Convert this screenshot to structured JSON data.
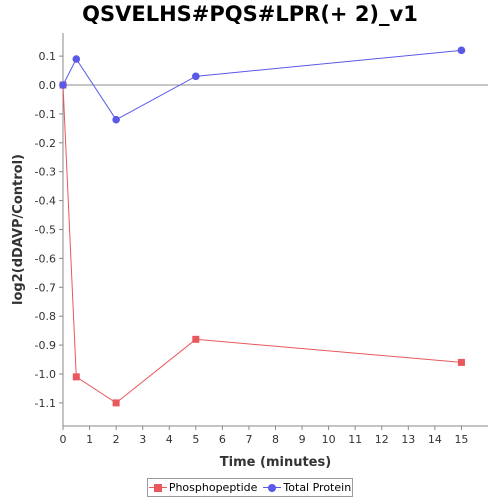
{
  "chart_data": {
    "type": "line",
    "title": "QSVELHS#PQS#LPR(+ 2)_v1",
    "xlabel": "Time (minutes)",
    "ylabel": "log2(dDAVP/Control)",
    "xlim": [
      0,
      16
    ],
    "ylim": [
      -1.18,
      0.18
    ],
    "x_ticks": [
      0,
      1,
      2,
      3,
      4,
      5,
      6,
      7,
      8,
      9,
      10,
      11,
      12,
      13,
      14,
      15
    ],
    "y_ticks": [
      0.1,
      0.0,
      -0.1,
      -0.2,
      -0.3,
      -0.4,
      -0.5,
      -0.6,
      -0.7,
      -0.8,
      -0.9,
      -1.0,
      -1.1
    ],
    "y_tick_labels": [
      "0.1",
      "0.0",
      "-0.1",
      "-0.2",
      "-0.3",
      "-0.4",
      "-0.5",
      "-0.6",
      "-0.7",
      "-0.8",
      "-0.9",
      "-1.0",
      "-1.1"
    ],
    "zero_line": true,
    "grid": false,
    "legend_position": "bottom",
    "series": [
      {
        "name": "Phosphopeptide",
        "color": "#e8585c",
        "marker": "square",
        "x": [
          0,
          0.5,
          2,
          5,
          15
        ],
        "y": [
          0.0,
          -1.01,
          -1.1,
          -0.88,
          -0.96
        ]
      },
      {
        "name": "Total Protein",
        "color": "#5a5ae8",
        "marker": "circle",
        "x": [
          0,
          0.5,
          2,
          5,
          15
        ],
        "y": [
          0.0,
          0.09,
          -0.12,
          0.03,
          0.12
        ]
      }
    ]
  }
}
